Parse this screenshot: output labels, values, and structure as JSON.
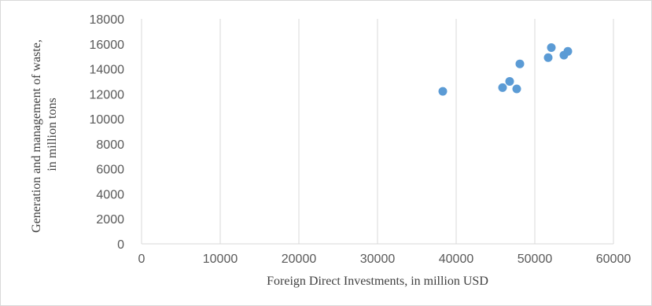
{
  "chart_data": {
    "type": "scatter",
    "title": "",
    "xlabel": "Foreign Direct Investments, in million USD",
    "ylabel_lines": [
      "Generation and management of waste,",
      "in million tons"
    ],
    "xlim": [
      0,
      60000
    ],
    "ylim": [
      0,
      18000
    ],
    "x_ticks": [
      "0",
      "10000",
      "20000",
      "30000",
      "40000",
      "50000",
      "60000"
    ],
    "y_ticks": [
      "0",
      "2000",
      "4000",
      "6000",
      "8000",
      "10000",
      "12000",
      "14000",
      "16000",
      "18000"
    ],
    "grid": "vertical",
    "legend": "none",
    "marker_color": "#5b9bd5",
    "points": [
      {
        "x": 38300,
        "y": 12200
      },
      {
        "x": 45900,
        "y": 12500
      },
      {
        "x": 46800,
        "y": 13000
      },
      {
        "x": 47700,
        "y": 12400
      },
      {
        "x": 48100,
        "y": 14400
      },
      {
        "x": 51700,
        "y": 14900
      },
      {
        "x": 52100,
        "y": 15700
      },
      {
        "x": 53700,
        "y": 15100
      },
      {
        "x": 54200,
        "y": 15400
      }
    ]
  }
}
